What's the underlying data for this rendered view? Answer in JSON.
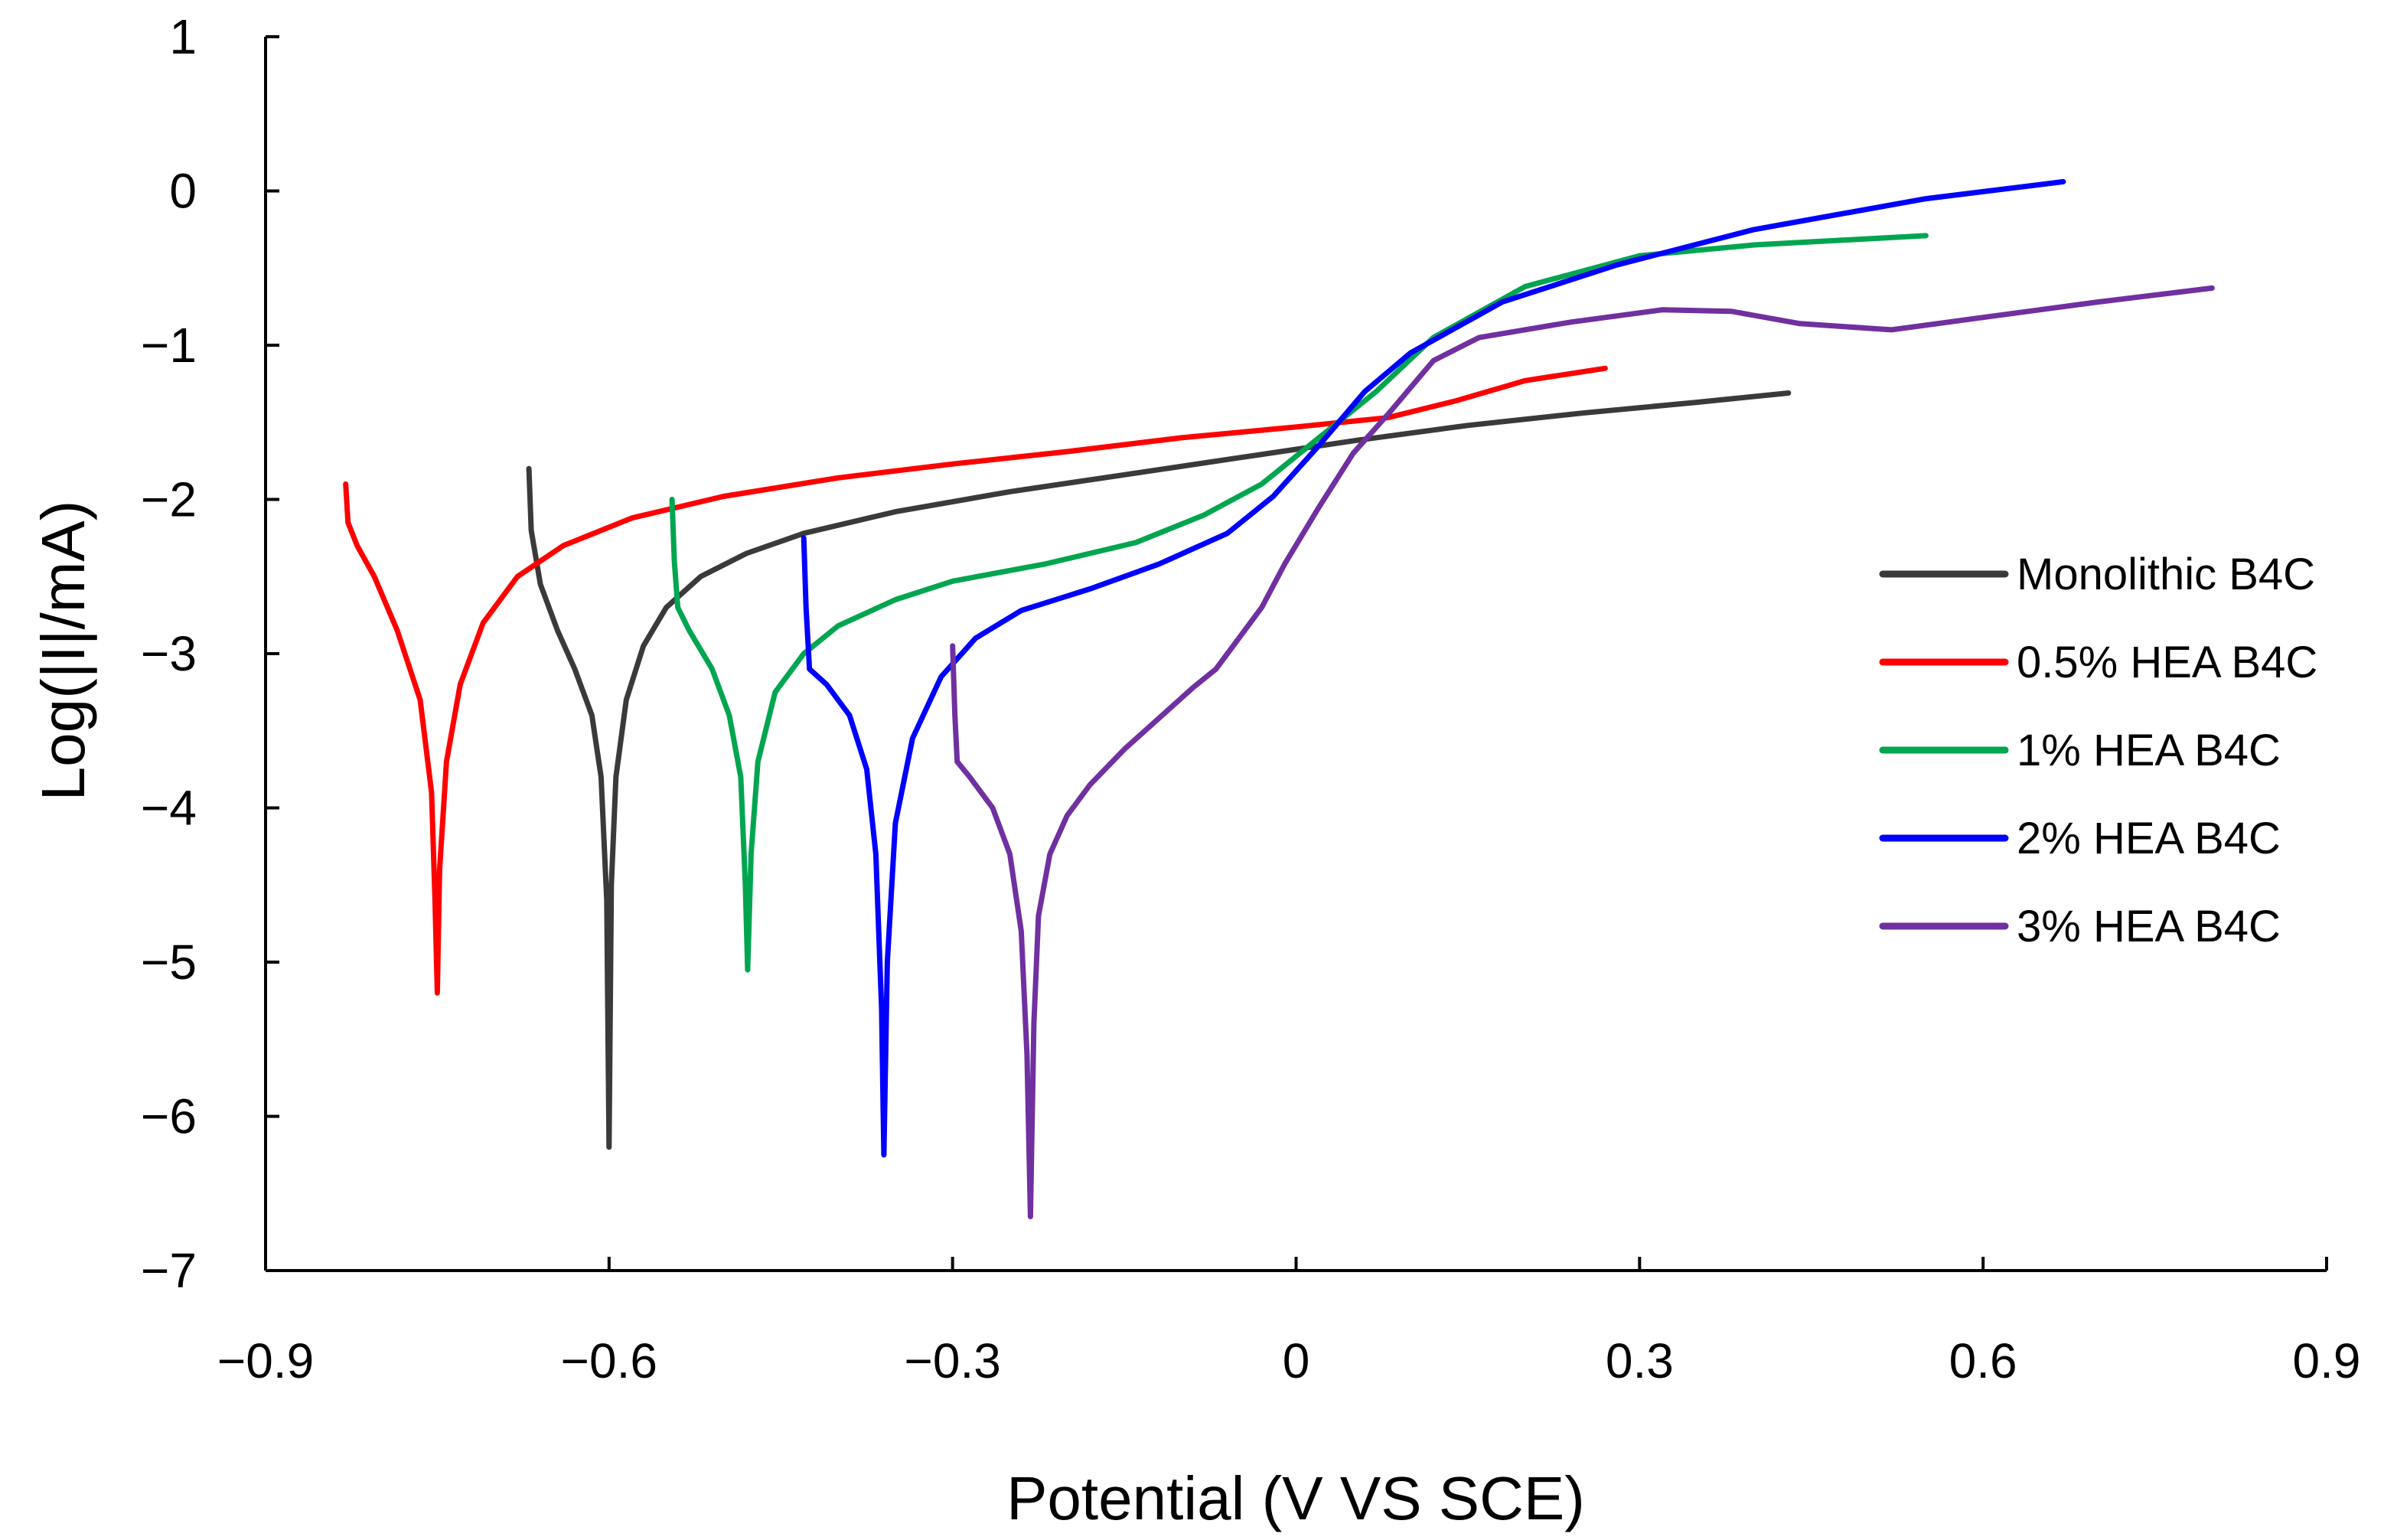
{
  "chart_data": {
    "type": "line",
    "title": "",
    "xlabel": "Potential (V VS SCE)",
    "ylabel": "Log(|I|/mA)",
    "xlim": [
      -0.9,
      0.9
    ],
    "ylim": [
      -7,
      1
    ],
    "x_ticks": [
      -0.9,
      -0.6,
      -0.3,
      0,
      0.3,
      0.6,
      0.9
    ],
    "x_tick_labels": [
      "−0.9",
      "−0.6",
      "−0.3",
      "0",
      "0.3",
      "0.6",
      "0.9"
    ],
    "y_ticks": [
      1,
      0,
      -1,
      -2,
      -3,
      -4,
      -5,
      -6,
      -7
    ],
    "y_tick_labels": [
      "1",
      "0",
      "−1",
      "−2",
      "−3",
      "−4",
      "−5",
      "−6",
      "−7"
    ],
    "grid": false,
    "legend_position": "right",
    "series": [
      {
        "name": "Monolithic B4C",
        "color": "#3a3a3a",
        "points": [
          [
            -0.67,
            -1.8
          ],
          [
            -0.668,
            -2.2
          ],
          [
            -0.66,
            -2.55
          ],
          [
            -0.645,
            -2.85
          ],
          [
            -0.63,
            -3.1
          ],
          [
            -0.615,
            -3.4
          ],
          [
            -0.607,
            -3.8
          ],
          [
            -0.602,
            -4.6
          ],
          [
            -0.6,
            -6.2
          ],
          [
            -0.598,
            -4.5
          ],
          [
            -0.594,
            -3.8
          ],
          [
            -0.585,
            -3.3
          ],
          [
            -0.57,
            -2.95
          ],
          [
            -0.55,
            -2.7
          ],
          [
            -0.52,
            -2.5
          ],
          [
            -0.48,
            -2.35
          ],
          [
            -0.43,
            -2.22
          ],
          [
            -0.35,
            -2.08
          ],
          [
            -0.25,
            -1.95
          ],
          [
            -0.15,
            -1.84
          ],
          [
            -0.05,
            -1.73
          ],
          [
            0.05,
            -1.62
          ],
          [
            0.15,
            -1.52
          ],
          [
            0.25,
            -1.44
          ],
          [
            0.35,
            -1.37
          ],
          [
            0.43,
            -1.31
          ]
        ]
      },
      {
        "name": "0.5% HEA B4C",
        "color": "#ff0000",
        "points": [
          [
            -0.83,
            -1.9
          ],
          [
            -0.828,
            -2.15
          ],
          [
            -0.82,
            -2.3
          ],
          [
            -0.805,
            -2.5
          ],
          [
            -0.785,
            -2.85
          ],
          [
            -0.765,
            -3.3
          ],
          [
            -0.755,
            -3.9
          ],
          [
            -0.752,
            -4.6
          ],
          [
            -0.75,
            -5.2
          ],
          [
            -0.748,
            -4.4
          ],
          [
            -0.742,
            -3.7
          ],
          [
            -0.73,
            -3.2
          ],
          [
            -0.71,
            -2.8
          ],
          [
            -0.68,
            -2.5
          ],
          [
            -0.64,
            -2.3
          ],
          [
            -0.58,
            -2.12
          ],
          [
            -0.5,
            -1.98
          ],
          [
            -0.4,
            -1.86
          ],
          [
            -0.3,
            -1.77
          ],
          [
            -0.2,
            -1.69
          ],
          [
            -0.1,
            -1.6
          ],
          [
            0,
            -1.53
          ],
          [
            0.08,
            -1.47
          ],
          [
            0.14,
            -1.36
          ],
          [
            0.2,
            -1.23
          ],
          [
            0.27,
            -1.15
          ]
        ]
      },
      {
        "name": "1% HEA B4C",
        "color": "#00a550",
        "points": [
          [
            -0.545,
            -2.0
          ],
          [
            -0.543,
            -2.4
          ],
          [
            -0.54,
            -2.7
          ],
          [
            -0.53,
            -2.85
          ],
          [
            -0.51,
            -3.1
          ],
          [
            -0.495,
            -3.4
          ],
          [
            -0.485,
            -3.8
          ],
          [
            -0.481,
            -4.5
          ],
          [
            -0.479,
            -5.05
          ],
          [
            -0.476,
            -4.3
          ],
          [
            -0.47,
            -3.7
          ],
          [
            -0.455,
            -3.25
          ],
          [
            -0.43,
            -3.0
          ],
          [
            -0.4,
            -2.82
          ],
          [
            -0.35,
            -2.65
          ],
          [
            -0.3,
            -2.53
          ],
          [
            -0.22,
            -2.42
          ],
          [
            -0.14,
            -2.28
          ],
          [
            -0.08,
            -2.1
          ],
          [
            -0.03,
            -1.9
          ],
          [
            0.02,
            -1.6
          ],
          [
            0.07,
            -1.3
          ],
          [
            0.12,
            -0.95
          ],
          [
            0.2,
            -0.62
          ],
          [
            0.3,
            -0.42
          ],
          [
            0.4,
            -0.35
          ],
          [
            0.55,
            -0.29
          ]
        ]
      },
      {
        "name": "2% HEA B4C",
        "color": "#0000ff",
        "points": [
          [
            -0.43,
            -2.25
          ],
          [
            -0.428,
            -2.7
          ],
          [
            -0.425,
            -3.1
          ],
          [
            -0.41,
            -3.2
          ],
          [
            -0.39,
            -3.4
          ],
          [
            -0.375,
            -3.75
          ],
          [
            -0.367,
            -4.3
          ],
          [
            -0.362,
            -5.3
          ],
          [
            -0.36,
            -6.25
          ],
          [
            -0.357,
            -5.0
          ],
          [
            -0.35,
            -4.1
          ],
          [
            -0.335,
            -3.55
          ],
          [
            -0.31,
            -3.15
          ],
          [
            -0.28,
            -2.9
          ],
          [
            -0.24,
            -2.72
          ],
          [
            -0.18,
            -2.58
          ],
          [
            -0.12,
            -2.42
          ],
          [
            -0.06,
            -2.22
          ],
          [
            -0.02,
            -1.98
          ],
          [
            0.02,
            -1.65
          ],
          [
            0.06,
            -1.3
          ],
          [
            0.1,
            -1.05
          ],
          [
            0.18,
            -0.72
          ],
          [
            0.28,
            -0.48
          ],
          [
            0.4,
            -0.25
          ],
          [
            0.55,
            -0.05
          ],
          [
            0.67,
            0.06
          ]
        ]
      },
      {
        "name": "3% HEA B4C",
        "color": "#7030a0",
        "points": [
          [
            -0.3,
            -2.95
          ],
          [
            -0.298,
            -3.4
          ],
          [
            -0.296,
            -3.7
          ],
          [
            -0.285,
            -3.8
          ],
          [
            -0.265,
            -4.0
          ],
          [
            -0.25,
            -4.3
          ],
          [
            -0.24,
            -4.8
          ],
          [
            -0.235,
            -5.6
          ],
          [
            -0.232,
            -6.65
          ],
          [
            -0.229,
            -5.4
          ],
          [
            -0.225,
            -4.7
          ],
          [
            -0.215,
            -4.3
          ],
          [
            -0.2,
            -4.05
          ],
          [
            -0.18,
            -3.85
          ],
          [
            -0.15,
            -3.62
          ],
          [
            -0.12,
            -3.42
          ],
          [
            -0.09,
            -3.22
          ],
          [
            -0.07,
            -3.1
          ],
          [
            -0.05,
            -2.9
          ],
          [
            -0.03,
            -2.7
          ],
          [
            -0.01,
            -2.42
          ],
          [
            0.02,
            -2.05
          ],
          [
            0.05,
            -1.7
          ],
          [
            0.08,
            -1.45
          ],
          [
            0.12,
            -1.1
          ],
          [
            0.16,
            -0.95
          ],
          [
            0.24,
            -0.85
          ],
          [
            0.32,
            -0.77
          ],
          [
            0.38,
            -0.78
          ],
          [
            0.44,
            -0.86
          ],
          [
            0.52,
            -0.9
          ],
          [
            0.6,
            -0.82
          ],
          [
            0.7,
            -0.72
          ],
          [
            0.8,
            -0.63
          ]
        ]
      }
    ]
  }
}
